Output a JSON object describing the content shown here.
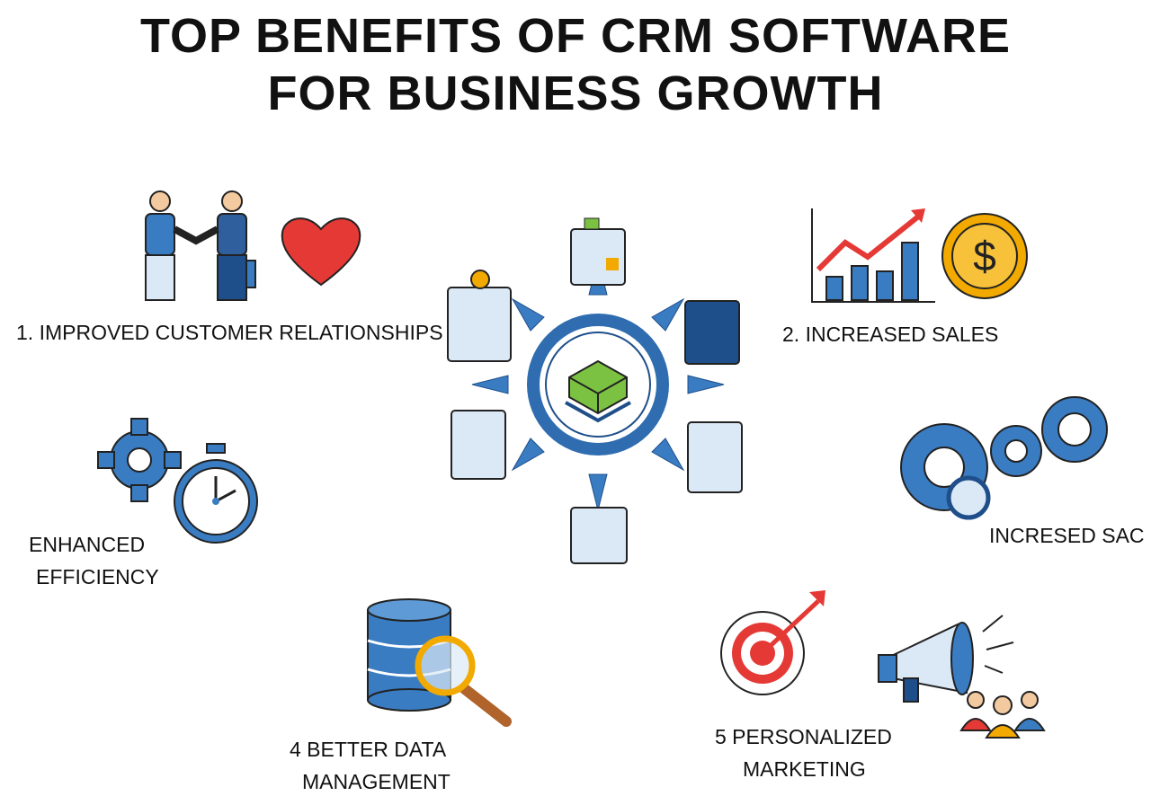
{
  "title": {
    "line1": "TOP BENEFITS OF CRM SOFTWARE",
    "line2": "FOR BUSINESS GROWTH"
  },
  "benefits": [
    {
      "label": "1. IMPROVED CUSTOMER RELATIONSHIPS",
      "icons": [
        "handshake-icon",
        "heart-icon"
      ]
    },
    {
      "label": "2. INCREASED SALES",
      "icons": [
        "bar-chart-growth-icon",
        "dollar-coin-icon"
      ]
    },
    {
      "label_line1": "ENHANCED",
      "label_line2": "EFFICIENCY",
      "icons": [
        "gear-icon",
        "stopwatch-icon"
      ]
    },
    {
      "label": "INCRESED SAC",
      "icons": [
        "gears-icon",
        "magnifier-icon"
      ]
    },
    {
      "label_line1": "4 BETTER DATA",
      "label_line2": "MANAGEMENT",
      "icons": [
        "database-icon",
        "magnifier-icon"
      ]
    },
    {
      "label_line1": "5 PERSONALIZED",
      "label_line2": "MARKETING",
      "icons": [
        "target-icon",
        "megaphone-icon",
        "people-icon"
      ]
    }
  ],
  "center": {
    "icon": "crm-hub-icon",
    "nodes": 8
  },
  "colors": {
    "blue": "#3a7cc2",
    "dark_blue": "#1f4f8a",
    "light_blue": "#dbe9f7",
    "red": "#e53935",
    "orange": "#f2a900",
    "green": "#7cc242"
  }
}
